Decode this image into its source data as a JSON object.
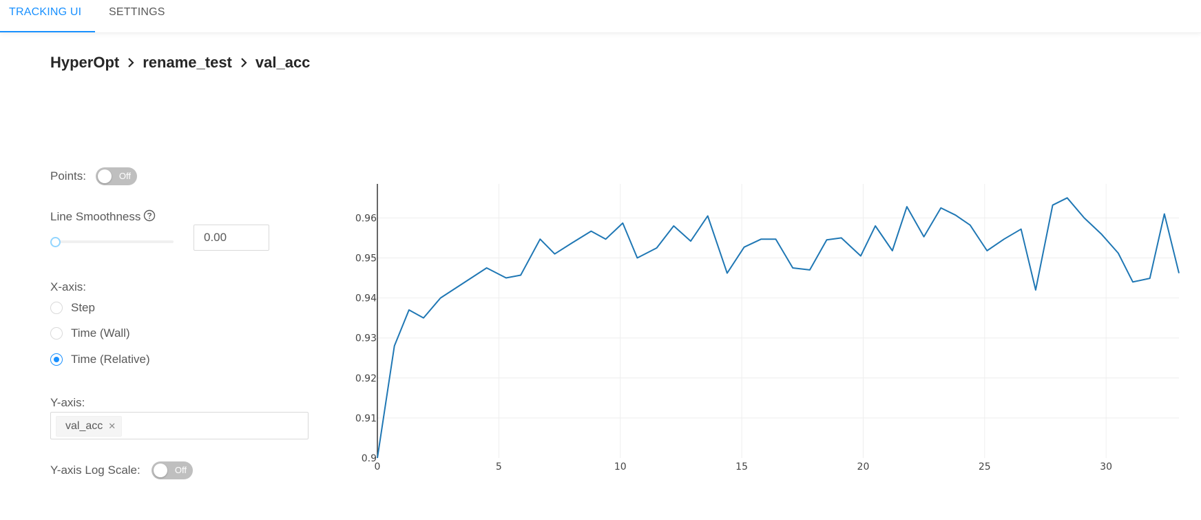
{
  "nav": {
    "tabs": [
      {
        "label": "TRACKING UI",
        "active": true
      },
      {
        "label": "SETTINGS",
        "active": false
      }
    ]
  },
  "breadcrumb": [
    "HyperOpt",
    "rename_test",
    "val_acc"
  ],
  "controls": {
    "points": {
      "label": "Points:",
      "state": "Off"
    },
    "smoothness": {
      "label": "Line Smoothness",
      "value": "0.00",
      "slider_value": 0
    },
    "xaxis": {
      "label": "X-axis:",
      "options": [
        "Step",
        "Time (Wall)",
        "Time (Relative)"
      ],
      "selected": "Time (Relative)"
    },
    "yaxis": {
      "label": "Y-axis:",
      "tags": [
        "val_acc"
      ]
    },
    "log_scale": {
      "label": "Y-axis Log Scale:",
      "state": "Off"
    }
  },
  "colors": {
    "accent": "#1890ff",
    "line": "#1f77b4"
  },
  "chart_data": {
    "type": "line",
    "x_ticks": [
      0,
      5,
      10,
      15,
      20,
      25,
      30
    ],
    "y_ticks": [
      0.9,
      0.91,
      0.92,
      0.93,
      0.94,
      0.95,
      0.96
    ],
    "xlim": [
      0,
      33
    ],
    "ylim": [
      0.9,
      0.9685
    ],
    "grid": true,
    "series": [
      {
        "x": [
          0,
          0.7,
          1.3,
          1.9,
          2.6,
          4.5,
          5.3,
          5.9,
          6.7,
          7.3,
          8.0,
          8.8,
          9.4,
          10.1,
          10.7,
          11.5,
          12.2,
          12.9,
          13.6,
          14.4,
          15.1,
          15.8,
          16.4,
          17.1,
          17.8,
          18.5,
          19.1,
          19.9,
          20.5,
          21.2,
          21.8,
          22.5,
          23.2,
          23.8,
          24.4,
          25.1,
          25.8,
          26.5,
          27.1,
          27.8,
          28.4,
          29.1,
          29.8,
          30.5,
          31.1,
          31.8,
          32.4,
          33.0
        ],
        "y": [
          0.9,
          0.928,
          0.937,
          0.935,
          0.94,
          0.9475,
          0.945,
          0.9457,
          0.9547,
          0.951,
          0.9537,
          0.9567,
          0.9547,
          0.9587,
          0.95,
          0.9525,
          0.958,
          0.9542,
          0.9605,
          0.9462,
          0.9527,
          0.9547,
          0.9547,
          0.9475,
          0.947,
          0.9545,
          0.955,
          0.9505,
          0.958,
          0.9518,
          0.9628,
          0.9553,
          0.9625,
          0.9607,
          0.9582,
          0.9518,
          0.9547,
          0.9572,
          0.942,
          0.9632,
          0.965,
          0.96,
          0.956,
          0.9512,
          0.944,
          0.9449,
          0.961,
          0.9462
        ]
      }
    ]
  }
}
